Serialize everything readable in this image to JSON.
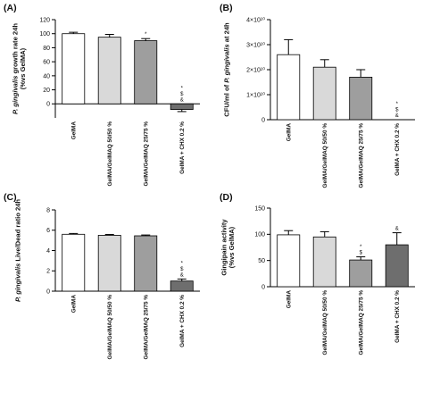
{
  "chart_data": [
    {
      "type": "bar",
      "panel": "(A)",
      "categories": [
        "GelMA",
        "GelMA/GelMAQ 50/50 %",
        "GelMA/GelMAQ 25/75 %",
        "GelMA + CHX 0.2 %"
      ],
      "values": [
        100,
        95,
        90,
        -8
      ],
      "errors": [
        2,
        4,
        3,
        3
      ],
      "annotations": [
        "",
        "",
        "*",
        "*\n$\n&"
      ],
      "ylabel": "P. gingivalis growth rate 24h\n(%vs GelMA)",
      "ylim": [
        -20,
        120
      ],
      "yticks": [
        0,
        20,
        40,
        60,
        80,
        100,
        120
      ],
      "ytick_labels": [
        "0",
        "20",
        "40",
        "60",
        "80",
        "100",
        "120"
      ],
      "colors": [
        "#ffffff",
        "#d9d9d9",
        "#9e9e9e",
        "#6e6e6e"
      ]
    },
    {
      "type": "bar",
      "panel": "(B)",
      "categories": [
        "GelMA",
        "GelMA/GelMAQ 50/50 %",
        "GelMA/GelMAQ 25/75 %",
        "GelMA + CHX 0.2 %"
      ],
      "values": [
        26000000000,
        21000000000,
        17000000000,
        0
      ],
      "errors": [
        6000000000,
        3000000000,
        3000000000,
        0
      ],
      "annotations": [
        "",
        "",
        "",
        "*\n$\n&"
      ],
      "ylabel": "CFU/ml of P. gingivalis at 24h",
      "ylim": [
        0,
        40000000000
      ],
      "yticks": [
        0,
        10000000000,
        20000000000,
        30000000000,
        40000000000
      ],
      "ytick_labels": [
        "0",
        "1×10¹⁰",
        "2×10¹⁰",
        "3×10¹⁰",
        "4×10¹⁰"
      ],
      "colors": [
        "#ffffff",
        "#d9d9d9",
        "#9e9e9e",
        "#6e6e6e"
      ]
    },
    {
      "type": "bar",
      "panel": "(C)",
      "categories": [
        "GelMA",
        "GelMA/GelMAQ 50/50 %",
        "GelMA/GelMAQ 25/75 %",
        "GelMA + CHX 0.2 %"
      ],
      "values": [
        5.6,
        5.5,
        5.45,
        1.0
      ],
      "errors": [
        0.08,
        0.08,
        0.08,
        0.2
      ],
      "annotations": [
        "",
        "",
        "",
        "*\n$\n&"
      ],
      "ylabel": "P. gingivalis Live/Dead ratio 24h",
      "ylim": [
        0,
        8
      ],
      "yticks": [
        0,
        2,
        4,
        6,
        8
      ],
      "ytick_labels": [
        "0",
        "2",
        "4",
        "6",
        "8"
      ],
      "colors": [
        "#ffffff",
        "#d9d9d9",
        "#9e9e9e",
        "#6e6e6e"
      ]
    },
    {
      "type": "bar",
      "panel": "(D)",
      "categories": [
        "GelMA",
        "GelMA/GelMAQ 50/50 %",
        "GelMA/GelMAQ 25/75 %",
        "GelMA + CHX 0.2 %"
      ],
      "values": [
        99,
        95,
        51,
        80
      ],
      "errors": [
        8,
        10,
        6,
        23
      ],
      "annotations": [
        "",
        "",
        "*\n$",
        "&"
      ],
      "ylabel": "Gingipain activity\n(%vs GelMA)",
      "ylim": [
        0,
        150
      ],
      "yticks": [
        0,
        50,
        100,
        150
      ],
      "ytick_labels": [
        "0",
        "50",
        "100",
        "150"
      ],
      "colors": [
        "#ffffff",
        "#d9d9d9",
        "#9e9e9e",
        "#6e6e6e"
      ]
    }
  ]
}
